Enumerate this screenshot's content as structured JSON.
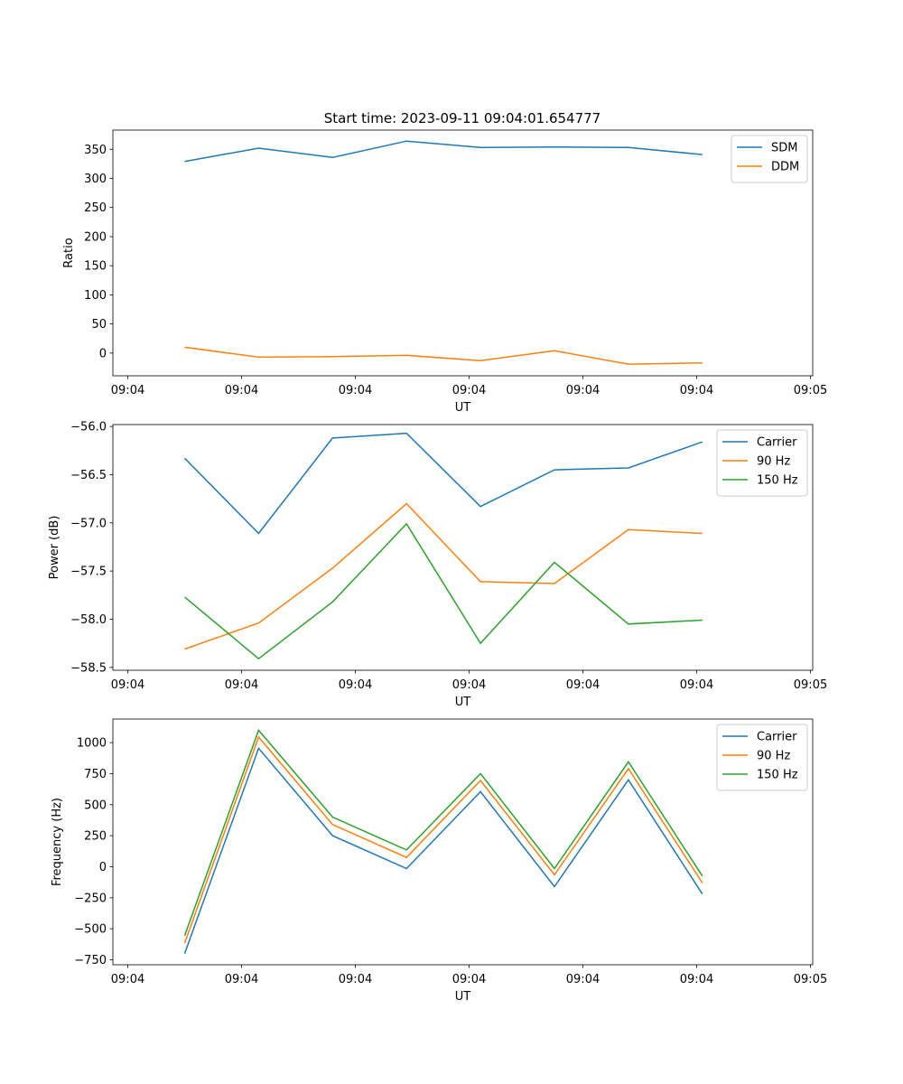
{
  "title": "Start time: 2023-09-11 09:04:01.654777",
  "colors": {
    "blue": "#1f77b4",
    "orange": "#ff7f0e",
    "green": "#2ca02c"
  },
  "chart_data": [
    {
      "type": "line",
      "ylabel": "Ratio",
      "xlabel": "UT",
      "x": [
        0.5,
        1.15,
        1.8,
        2.45,
        3.1,
        3.75,
        4.4,
        5.05
      ],
      "xlim": [
        0,
        6
      ],
      "xticks": [
        0,
        1,
        2,
        3,
        4,
        5,
        6
      ],
      "xticklabels": [
        "09:04",
        "09:04",
        "09:04",
        "09:04",
        "09:04",
        "09:04",
        "09:05"
      ],
      "ylim": [
        -39,
        383
      ],
      "yticks": [
        0,
        50,
        100,
        150,
        200,
        250,
        300,
        350
      ],
      "yticklabels": [
        "0",
        "50",
        "100",
        "150",
        "200",
        "250",
        "300",
        "350"
      ],
      "legend": "top-right",
      "series": [
        {
          "name": "SDM",
          "color": "#1f77b4",
          "values": [
            329,
            352,
            336,
            364,
            353,
            354,
            353,
            341
          ]
        },
        {
          "name": "DDM",
          "color": "#ff7f0e",
          "values": [
            10,
            -7,
            -6,
            -4,
            -13,
            4,
            -19,
            -17
          ]
        }
      ]
    },
    {
      "type": "line",
      "ylabel": "Power (dB)",
      "xlabel": "UT",
      "x": [
        0.5,
        1.15,
        1.8,
        2.45,
        3.1,
        3.75,
        4.4,
        5.05
      ],
      "xlim": [
        0,
        6
      ],
      "xticks": [
        0,
        1,
        2,
        3,
        4,
        5,
        6
      ],
      "xticklabels": [
        "09:04",
        "09:04",
        "09:04",
        "09:04",
        "09:04",
        "09:04",
        "09:05"
      ],
      "ylim": [
        -58.53,
        -55.98
      ],
      "yticks": [
        -58.5,
        -58.0,
        -57.5,
        -57.0,
        -56.5,
        -56.0
      ],
      "yticklabels": [
        "−58.5",
        "−58.0",
        "−57.5",
        "−57.0",
        "−56.5",
        "−56.0"
      ],
      "legend": "top-right",
      "series": [
        {
          "name": "Carrier",
          "color": "#1f77b4",
          "values": [
            -56.33,
            -57.11,
            -56.12,
            -56.07,
            -56.83,
            -56.45,
            -56.43,
            -56.16
          ]
        },
        {
          "name": "90 Hz",
          "color": "#ff7f0e",
          "values": [
            -58.31,
            -58.04,
            -57.47,
            -56.8,
            -57.61,
            -57.63,
            -57.07,
            -57.11
          ]
        },
        {
          "name": "150 Hz",
          "color": "#2ca02c",
          "values": [
            -57.77,
            -58.41,
            -57.82,
            -57.01,
            -58.25,
            -57.41,
            -58.05,
            -58.01
          ]
        }
      ]
    },
    {
      "type": "line",
      "ylabel": "Frequency (Hz)",
      "xlabel": "UT",
      "x": [
        0.5,
        1.15,
        1.8,
        2.45,
        3.1,
        3.75,
        4.4,
        5.05
      ],
      "xlim": [
        0,
        6
      ],
      "xticks": [
        0,
        1,
        2,
        3,
        4,
        5,
        6
      ],
      "xticklabels": [
        "09:04",
        "09:04",
        "09:04",
        "09:04",
        "09:04",
        "09:04",
        "09:05"
      ],
      "ylim": [
        -790,
        1190
      ],
      "yticks": [
        -750,
        -500,
        -250,
        0,
        250,
        500,
        750,
        1000
      ],
      "yticklabels": [
        "−750",
        "−500",
        "−250",
        "0",
        "250",
        "500",
        "750",
        "1000"
      ],
      "legend": "top-right",
      "series": [
        {
          "name": "Carrier",
          "color": "#1f77b4",
          "values": [
            -700,
            955,
            250,
            -15,
            605,
            -160,
            700,
            -220
          ]
        },
        {
          "name": "90 Hz",
          "color": "#ff7f0e",
          "values": [
            -615,
            1045,
            340,
            75,
            695,
            -65,
            790,
            -130
          ]
        },
        {
          "name": "150 Hz",
          "color": "#2ca02c",
          "values": [
            -555,
            1100,
            400,
            135,
            750,
            -15,
            845,
            -75
          ]
        }
      ]
    }
  ]
}
